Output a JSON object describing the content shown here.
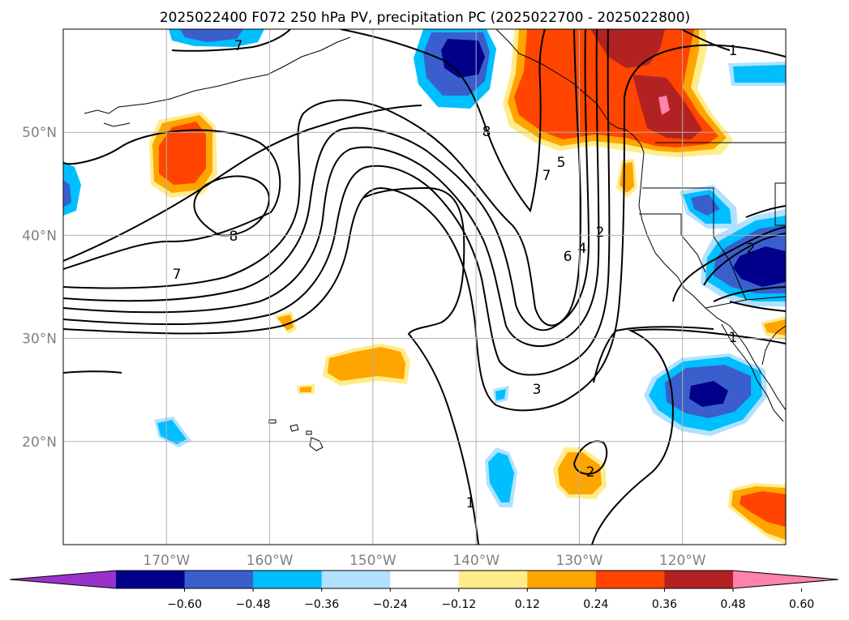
{
  "chart_data": {
    "type": "map",
    "title": "2025022400 F072 250 hPa PV, precipitation PC (2025022700 - 2025022800)",
    "map_extent": {
      "lon": [
        -180,
        -110
      ],
      "lat": [
        10,
        60
      ]
    },
    "x_ticks": [
      "170°W",
      "160°W",
      "150°W",
      "140°W",
      "130°W",
      "120°W"
    ],
    "x_tick_lons": [
      -170,
      -160,
      -150,
      -140,
      -130,
      -120
    ],
    "y_ticks": [
      "50°N",
      "40°N",
      "30°N",
      "20°N"
    ],
    "y_tick_lats": [
      50,
      40,
      30,
      20
    ],
    "grid": true,
    "pv_contour_labels": [
      "7",
      "1",
      "8",
      "5",
      "7",
      "8",
      "2",
      "4",
      "6",
      "7",
      "2",
      "3",
      "1",
      "1",
      "2"
    ],
    "colorbar": {
      "levels": [
        -0.6,
        -0.48,
        -0.36,
        -0.24,
        -0.12,
        0.12,
        0.24,
        0.36,
        0.48,
        0.6
      ],
      "tick_labels": [
        "−0.60",
        "−0.48",
        "−0.36",
        "−0.24",
        "−0.12",
        "0.12",
        "0.24",
        "0.36",
        "0.48",
        "0.60"
      ],
      "colors": [
        "#9932cc",
        "#00008b",
        "#3a5fcd",
        "#00bfff",
        "#b0e2ff",
        "#ffffff",
        "#ffec8b",
        "#ffa500",
        "#ff4500",
        "#b22222",
        "#ff82ab"
      ],
      "extend": "both"
    }
  }
}
